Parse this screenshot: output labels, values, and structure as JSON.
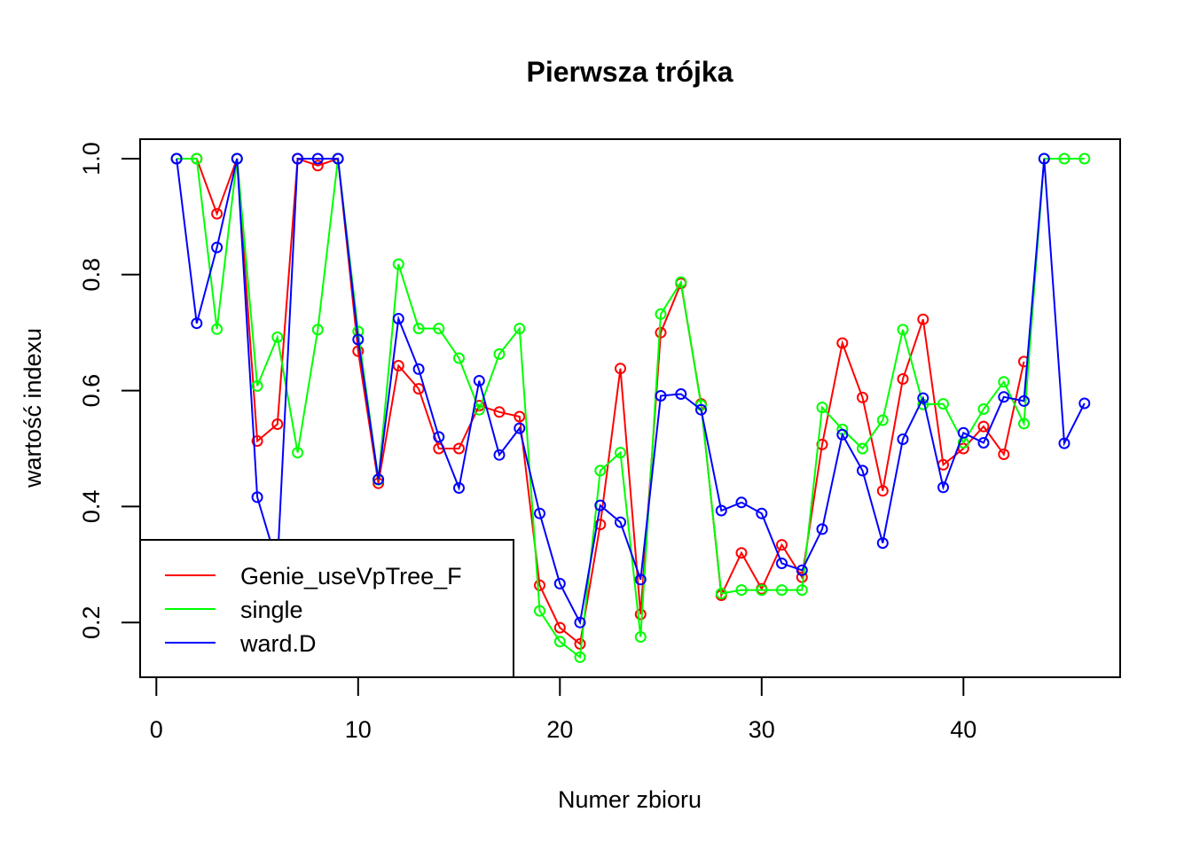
{
  "chart_data": {
    "type": "line",
    "title": "Pierwsza trójka",
    "xlabel": "Numer zbioru",
    "ylabel": "wartość indexu",
    "xlim": [
      0,
      46
    ],
    "ylim": [
      0.13,
      1.03
    ],
    "x_ticks": [
      0,
      10,
      20,
      30,
      40
    ],
    "y_ticks": [
      0.2,
      0.4,
      0.6,
      0.8,
      1.0
    ],
    "x_tick_labels": [
      "0",
      "10",
      "20",
      "30",
      "40"
    ],
    "y_tick_labels": [
      "0.2",
      "0.4",
      "0.6",
      "0.8",
      "1.0"
    ],
    "grid": false,
    "legend_position": "bottom-left",
    "series": [
      {
        "name": "Genie_useVpTree_F",
        "color": "#FF0000",
        "x": [
          1,
          2,
          3,
          4,
          5,
          6,
          7,
          8,
          9,
          10,
          11,
          12,
          13,
          14,
          15,
          16,
          17,
          18,
          19,
          20,
          21,
          22,
          23,
          24,
          25,
          26,
          27,
          28,
          29,
          30,
          31,
          32,
          33,
          34,
          35,
          36,
          37,
          38,
          39,
          40,
          41,
          42,
          43
        ],
        "values": [
          1.0,
          1.0,
          0.905,
          1.0,
          0.513,
          0.542,
          1.0,
          0.988,
          1.0,
          0.668,
          0.44,
          0.643,
          0.603,
          0.5,
          0.5,
          0.574,
          0.563,
          0.555,
          0.264,
          0.191,
          0.163,
          0.369,
          0.638,
          0.214,
          0.7,
          0.785,
          0.577,
          0.247,
          0.32,
          0.258,
          0.334,
          0.278,
          0.507,
          0.682,
          0.588,
          0.427,
          0.62,
          0.723,
          0.472,
          0.5,
          0.538,
          0.49,
          0.65
        ]
      },
      {
        "name": "single",
        "color": "#00FF00",
        "x": [
          1,
          2,
          3,
          4,
          5,
          6,
          7,
          8,
          9,
          10,
          11,
          12,
          13,
          14,
          15,
          16,
          17,
          18,
          19,
          20,
          21,
          22,
          23,
          24,
          25,
          26,
          27,
          28,
          29,
          30,
          31,
          32,
          33,
          34,
          35,
          36,
          37,
          38,
          39,
          40,
          41,
          42,
          43,
          44,
          45,
          46
        ],
        "values": [
          1.0,
          1.0,
          0.706,
          1.0,
          0.608,
          0.692,
          0.493,
          0.705,
          1.0,
          0.702,
          0.446,
          0.818,
          0.707,
          0.707,
          0.656,
          0.567,
          0.663,
          0.707,
          0.22,
          0.167,
          0.14,
          0.462,
          0.493,
          0.175,
          0.732,
          0.787,
          0.575,
          0.25,
          0.256,
          0.256,
          0.256,
          0.256,
          0.571,
          0.533,
          0.5,
          0.549,
          0.705,
          0.576,
          0.577,
          0.51,
          0.568,
          0.615,
          0.543,
          1.0,
          1.0,
          1.0
        ]
      },
      {
        "name": "ward.D",
        "color": "#0000FF",
        "x": [
          1,
          2,
          3,
          4,
          5,
          6,
          7,
          8,
          9,
          10,
          11,
          12,
          13,
          14,
          15,
          16,
          17,
          18,
          19,
          20,
          21,
          22,
          23,
          24,
          25,
          26,
          27,
          28,
          29,
          30,
          31,
          32,
          33,
          34,
          35,
          36,
          37,
          38,
          39,
          40,
          41,
          42,
          43,
          44,
          45,
          46
        ],
        "values": [
          1.0,
          0.716,
          0.847,
          1.0,
          0.416,
          0.3,
          1.0,
          1.0,
          1.0,
          0.688,
          0.447,
          0.724,
          0.637,
          0.52,
          0.432,
          0.617,
          0.489,
          0.535,
          0.388,
          0.267,
          0.2,
          0.402,
          0.373,
          0.274,
          0.591,
          0.594,
          0.567,
          0.393,
          0.407,
          0.388,
          0.302,
          0.29,
          0.361,
          0.524,
          0.462,
          0.337,
          0.516,
          0.587,
          0.433,
          0.527,
          0.51,
          0.589,
          0.582,
          1.0,
          0.509,
          0.578
        ]
      }
    ]
  }
}
